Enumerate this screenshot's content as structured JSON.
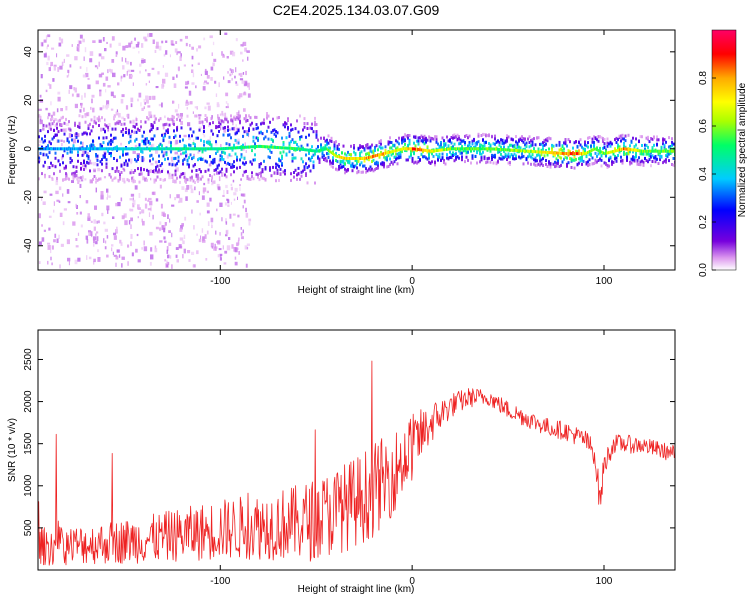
{
  "title": "C2E4.2025.134.03.07.G09",
  "colors": {
    "snr_line": "#ee2222",
    "colormap": [
      "#ffffff",
      "#dd99ee",
      "#7700dd",
      "#0000ff",
      "#00ccff",
      "#00ff66",
      "#aaff00",
      "#ffff00",
      "#ffaa00",
      "#ff0000",
      "#ff0066"
    ]
  },
  "chart_data": [
    {
      "type": "heatmap",
      "xlabel": "Height of straight line (km)",
      "ylabel": "Frequency (Hz)",
      "xlim": [
        -195,
        137
      ],
      "ylim": [
        -50,
        49
      ],
      "xticks": [
        -100,
        0,
        100
      ],
      "xtick_labels": [
        "-100",
        "0",
        "100"
      ],
      "yticks": [
        -40,
        -20,
        0,
        20,
        40
      ],
      "ytick_labels": [
        "-40",
        "-20",
        "0",
        "20",
        "40"
      ],
      "grid": false,
      "colorbar": {
        "label": "Normalized spectral amplitude",
        "ticks": [
          0.0,
          0.2,
          0.4,
          0.6,
          0.8
        ],
        "tick_labels": [
          "0.0",
          "0.2",
          "0.4",
          "0.6",
          "0.8"
        ],
        "range": [
          0,
          1
        ]
      },
      "ridge": {
        "x": [
          -195,
          -160,
          -120,
          -100,
          -80,
          -60,
          -50,
          -45,
          -40,
          -35,
          -30,
          -25,
          -20,
          -15,
          -10,
          -5,
          0,
          10,
          20,
          40,
          60,
          80,
          85,
          90,
          95,
          100,
          110,
          120,
          137
        ],
        "frequency": [
          0,
          0,
          0,
          0,
          1,
          0,
          -1,
          0,
          -3,
          -4,
          -4,
          -4,
          -3,
          -2,
          -1,
          0,
          0,
          -1,
          0,
          0,
          -1,
          -2,
          -2,
          -2,
          0,
          -2,
          0,
          -1,
          -1
        ],
        "amplitude": [
          0.35,
          0.4,
          0.5,
          0.5,
          0.55,
          0.55,
          0.5,
          0.55,
          0.7,
          0.8,
          0.75,
          0.8,
          0.85,
          0.8,
          0.75,
          0.7,
          0.9,
          0.75,
          0.6,
          0.6,
          0.65,
          0.85,
          0.9,
          0.7,
          0.6,
          0.6,
          0.85,
          0.6,
          0.6
        ]
      }
    },
    {
      "type": "line",
      "xlabel": "Height of straight line (km)",
      "ylabel": "SNR (10 * v/v)",
      "xlim": [
        -195,
        137
      ],
      "ylim": [
        0,
        2850
      ],
      "xticks": [
        -100,
        0,
        100
      ],
      "xtick_labels": [
        "-100",
        "0",
        "100"
      ],
      "yticks": [
        500,
        1000,
        1500,
        2000,
        2500
      ],
      "ytick_labels": [
        "500",
        "1000",
        "1500",
        "2000",
        "2500"
      ],
      "grid": false,
      "series": [
        {
          "x": [
            -195,
            -180,
            -160,
            -140,
            -120,
            -100,
            -80,
            -60,
            -50,
            -40,
            -30,
            -20,
            -10,
            0,
            10,
            20,
            30,
            40,
            50,
            60,
            70,
            80,
            90,
            95,
            98,
            100,
            105,
            110,
            120,
            130,
            137
          ],
          "y": [
            280,
            290,
            320,
            360,
            420,
            480,
            520,
            560,
            600,
            700,
            800,
            950,
            1150,
            1450,
            1750,
            1950,
            2050,
            2050,
            1900,
            1800,
            1700,
            1650,
            1550,
            1400,
            800,
            1250,
            1500,
            1500,
            1480,
            1420,
            1380
          ],
          "noise": [
            230,
            230,
            250,
            280,
            320,
            360,
            400,
            450,
            500,
            520,
            540,
            560,
            500,
            400,
            250,
            150,
            120,
            100,
            110,
            110,
            110,
            110,
            120,
            150,
            200,
            150,
            110,
            110,
            100,
            100,
            100
          ]
        }
      ]
    }
  ]
}
